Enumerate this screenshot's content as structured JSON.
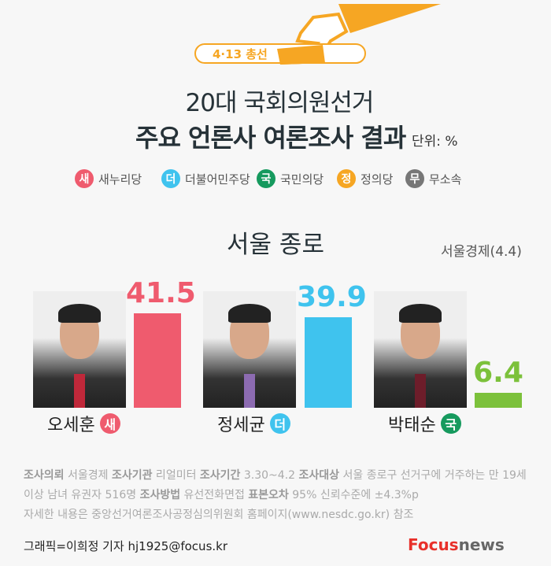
{
  "header": {
    "tag": "4·13 총선",
    "title_line1": "20대 국회의원선거",
    "title_line2": "주요 언론사 여론조사 결과",
    "unit": "단위: %"
  },
  "legend": [
    {
      "badge": "새",
      "label": "새누리당",
      "color": "#ef5b6e"
    },
    {
      "badge": "더",
      "label": "더불어민주당",
      "color": "#3fc3ee"
    },
    {
      "badge": "국",
      "label": "국민의당",
      "color": "#169a5e"
    },
    {
      "badge": "정",
      "label": "정의당",
      "color": "#f6a623"
    },
    {
      "badge": "무",
      "label": "무소속",
      "color": "#777777"
    }
  ],
  "chart_data": {
    "type": "bar",
    "title": "서울 종로",
    "source": "서울경제(4.4)",
    "categories": [
      "오세훈",
      "정세균",
      "박태순"
    ],
    "values": [
      41.5,
      39.9,
      6.4
    ],
    "party_badges": [
      "새",
      "더",
      "국"
    ],
    "bar_colors": [
      "#ef5b6e",
      "#3fc3ee",
      "#7cc13b"
    ],
    "badge_colors": [
      "#ef5b6e",
      "#3fc3ee",
      "#169a5e"
    ],
    "ylim": [
      0,
      45
    ]
  },
  "footer": {
    "line1": [
      {
        "b": "조사의뢰",
        "t": " 서울경제 "
      },
      {
        "b": "조사기관",
        "t": " 리얼미터 "
      },
      {
        "b": "조사기간",
        "t": " 3.30~4.2 "
      },
      {
        "b": "조사대상",
        "t": " 서울 종로구 선거구에 거주하는 만 19세"
      }
    ],
    "line2": [
      {
        "b": "",
        "t": "이상 남녀 유권자 516명 "
      },
      {
        "b": "조사방법",
        "t": " 유선전화면접  "
      },
      {
        "b": "표본오차",
        "t": " 95% 신뢰수준에 ±4.3%p"
      }
    ],
    "line3": "자세한 내용은 중앙선거여론조사공정심의위원회 홈페이지(www.nesdc.go.kr) 참조",
    "credit": "그래픽=이희정 기자 hj1925@focus.kr",
    "logo_focus": "Focus",
    "logo_news": "news"
  }
}
